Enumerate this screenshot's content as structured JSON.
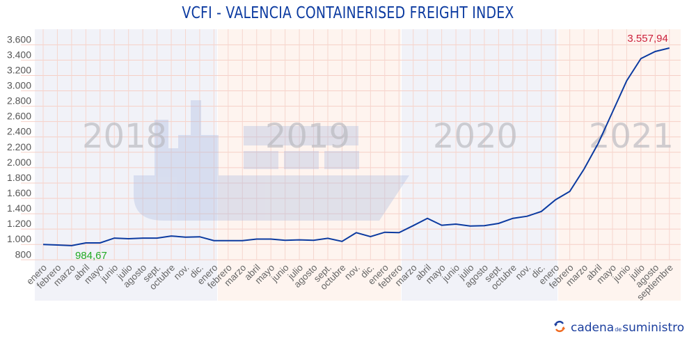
{
  "chart_data": {
    "type": "line",
    "title": "VCFI - VALENCIA CONTAINERISED FREIGHT INDEX",
    "xlabel": "",
    "ylabel": "",
    "ylim": [
      800,
      3600
    ],
    "y_ticks": [
      "800",
      "1.000",
      "1.200",
      "1.400",
      "1.600",
      "1.800",
      "2.000",
      "2.200",
      "2.400",
      "2.600",
      "2.800",
      "3.000",
      "3.200",
      "3.400",
      "3.600"
    ],
    "y_tick_values": [
      800,
      1000,
      1200,
      1400,
      1600,
      1800,
      2000,
      2200,
      2400,
      2600,
      2800,
      3000,
      3200,
      3400,
      3600
    ],
    "grid": true,
    "years": [
      {
        "label": "2018",
        "color": "#f1f2f8"
      },
      {
        "label": "2019",
        "color": "#fef4ef"
      },
      {
        "label": "2020",
        "color": "#f1f2f8"
      },
      {
        "label": "2021",
        "color": "#fef4ef"
      }
    ],
    "categories": [
      "enero",
      "febrero",
      "marzo",
      "abril",
      "mayo",
      "junio",
      "julio",
      "agosto",
      "sept.",
      "octubre",
      "nov.",
      "dic.",
      "enero",
      "febrero",
      "marzo",
      "abril",
      "mayo",
      "junio",
      "julio",
      "agosto",
      "sept.",
      "octubre",
      "nov.",
      "dic.",
      "enero",
      "febrero",
      "marzo",
      "abril",
      "mayo",
      "junio",
      "julio",
      "agosto",
      "sept.",
      "octubre",
      "nov.",
      "dic.",
      "enero",
      "febrero",
      "marzo",
      "abril",
      "mayo",
      "junio",
      "julio",
      "agosto",
      "septiembre"
    ],
    "series": [
      {
        "color": "#0b3aa0",
        "values": [
          1000,
          993,
          984.67,
          1020,
          1020,
          1083,
          1075,
          1083,
          1083,
          1110,
          1095,
          1100,
          1050,
          1050,
          1050,
          1070,
          1070,
          1055,
          1060,
          1055,
          1080,
          1040,
          1153,
          1102,
          1159,
          1153,
          1245,
          1340,
          1250,
          1265,
          1240,
          1245,
          1274,
          1340,
          1367,
          1430,
          1582,
          1691,
          1981,
          2316,
          2724,
          3131,
          3421,
          3512,
          3557.94
        ]
      }
    ],
    "annotations": [
      {
        "label": "984,67",
        "index": 2,
        "color": "#22aa22"
      },
      {
        "label": "3.557,94",
        "index": 44,
        "color": "#cc1f3a"
      }
    ]
  },
  "logo": {
    "part1": "cadena",
    "part2": "de",
    "part3": "suministro"
  }
}
